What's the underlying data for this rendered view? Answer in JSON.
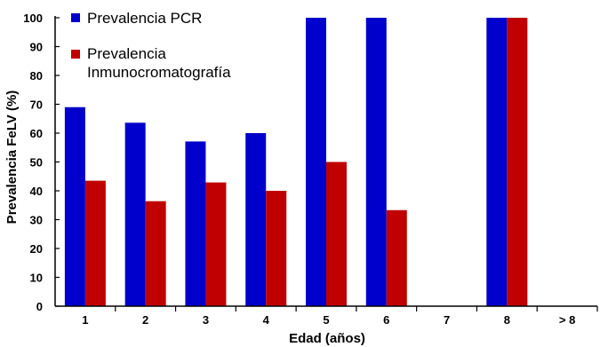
{
  "chart_data": {
    "type": "bar",
    "title": "",
    "xlabel": "Edad (años)",
    "ylabel": "Prevalencia FeLV (%)",
    "ylim": [
      0,
      100
    ],
    "yticks": [
      "0",
      "10",
      "20",
      "30",
      "40",
      "50",
      "60",
      "70",
      "80",
      "90",
      "100"
    ],
    "categories": [
      "1",
      "2",
      "3",
      "4",
      "5",
      "6",
      "7",
      "8",
      "> 8"
    ],
    "grid": false,
    "legend_position": "top-left",
    "series": [
      {
        "name": "Prevalencia PCR",
        "color": "#0000cc",
        "values": [
          69,
          63.6,
          57.1,
          60,
          100,
          100,
          null,
          100,
          null
        ]
      },
      {
        "name": "Prevalencia Inmunocromatografía",
        "color": "#c00000",
        "values": [
          43.5,
          36.4,
          42.9,
          40,
          50,
          33.3,
          null,
          100,
          null
        ]
      }
    ]
  },
  "legend": {
    "item1": "Prevalencia PCR",
    "item2_line1": "Prevalencia",
    "item2_line2": "Inmunocromatografía"
  }
}
